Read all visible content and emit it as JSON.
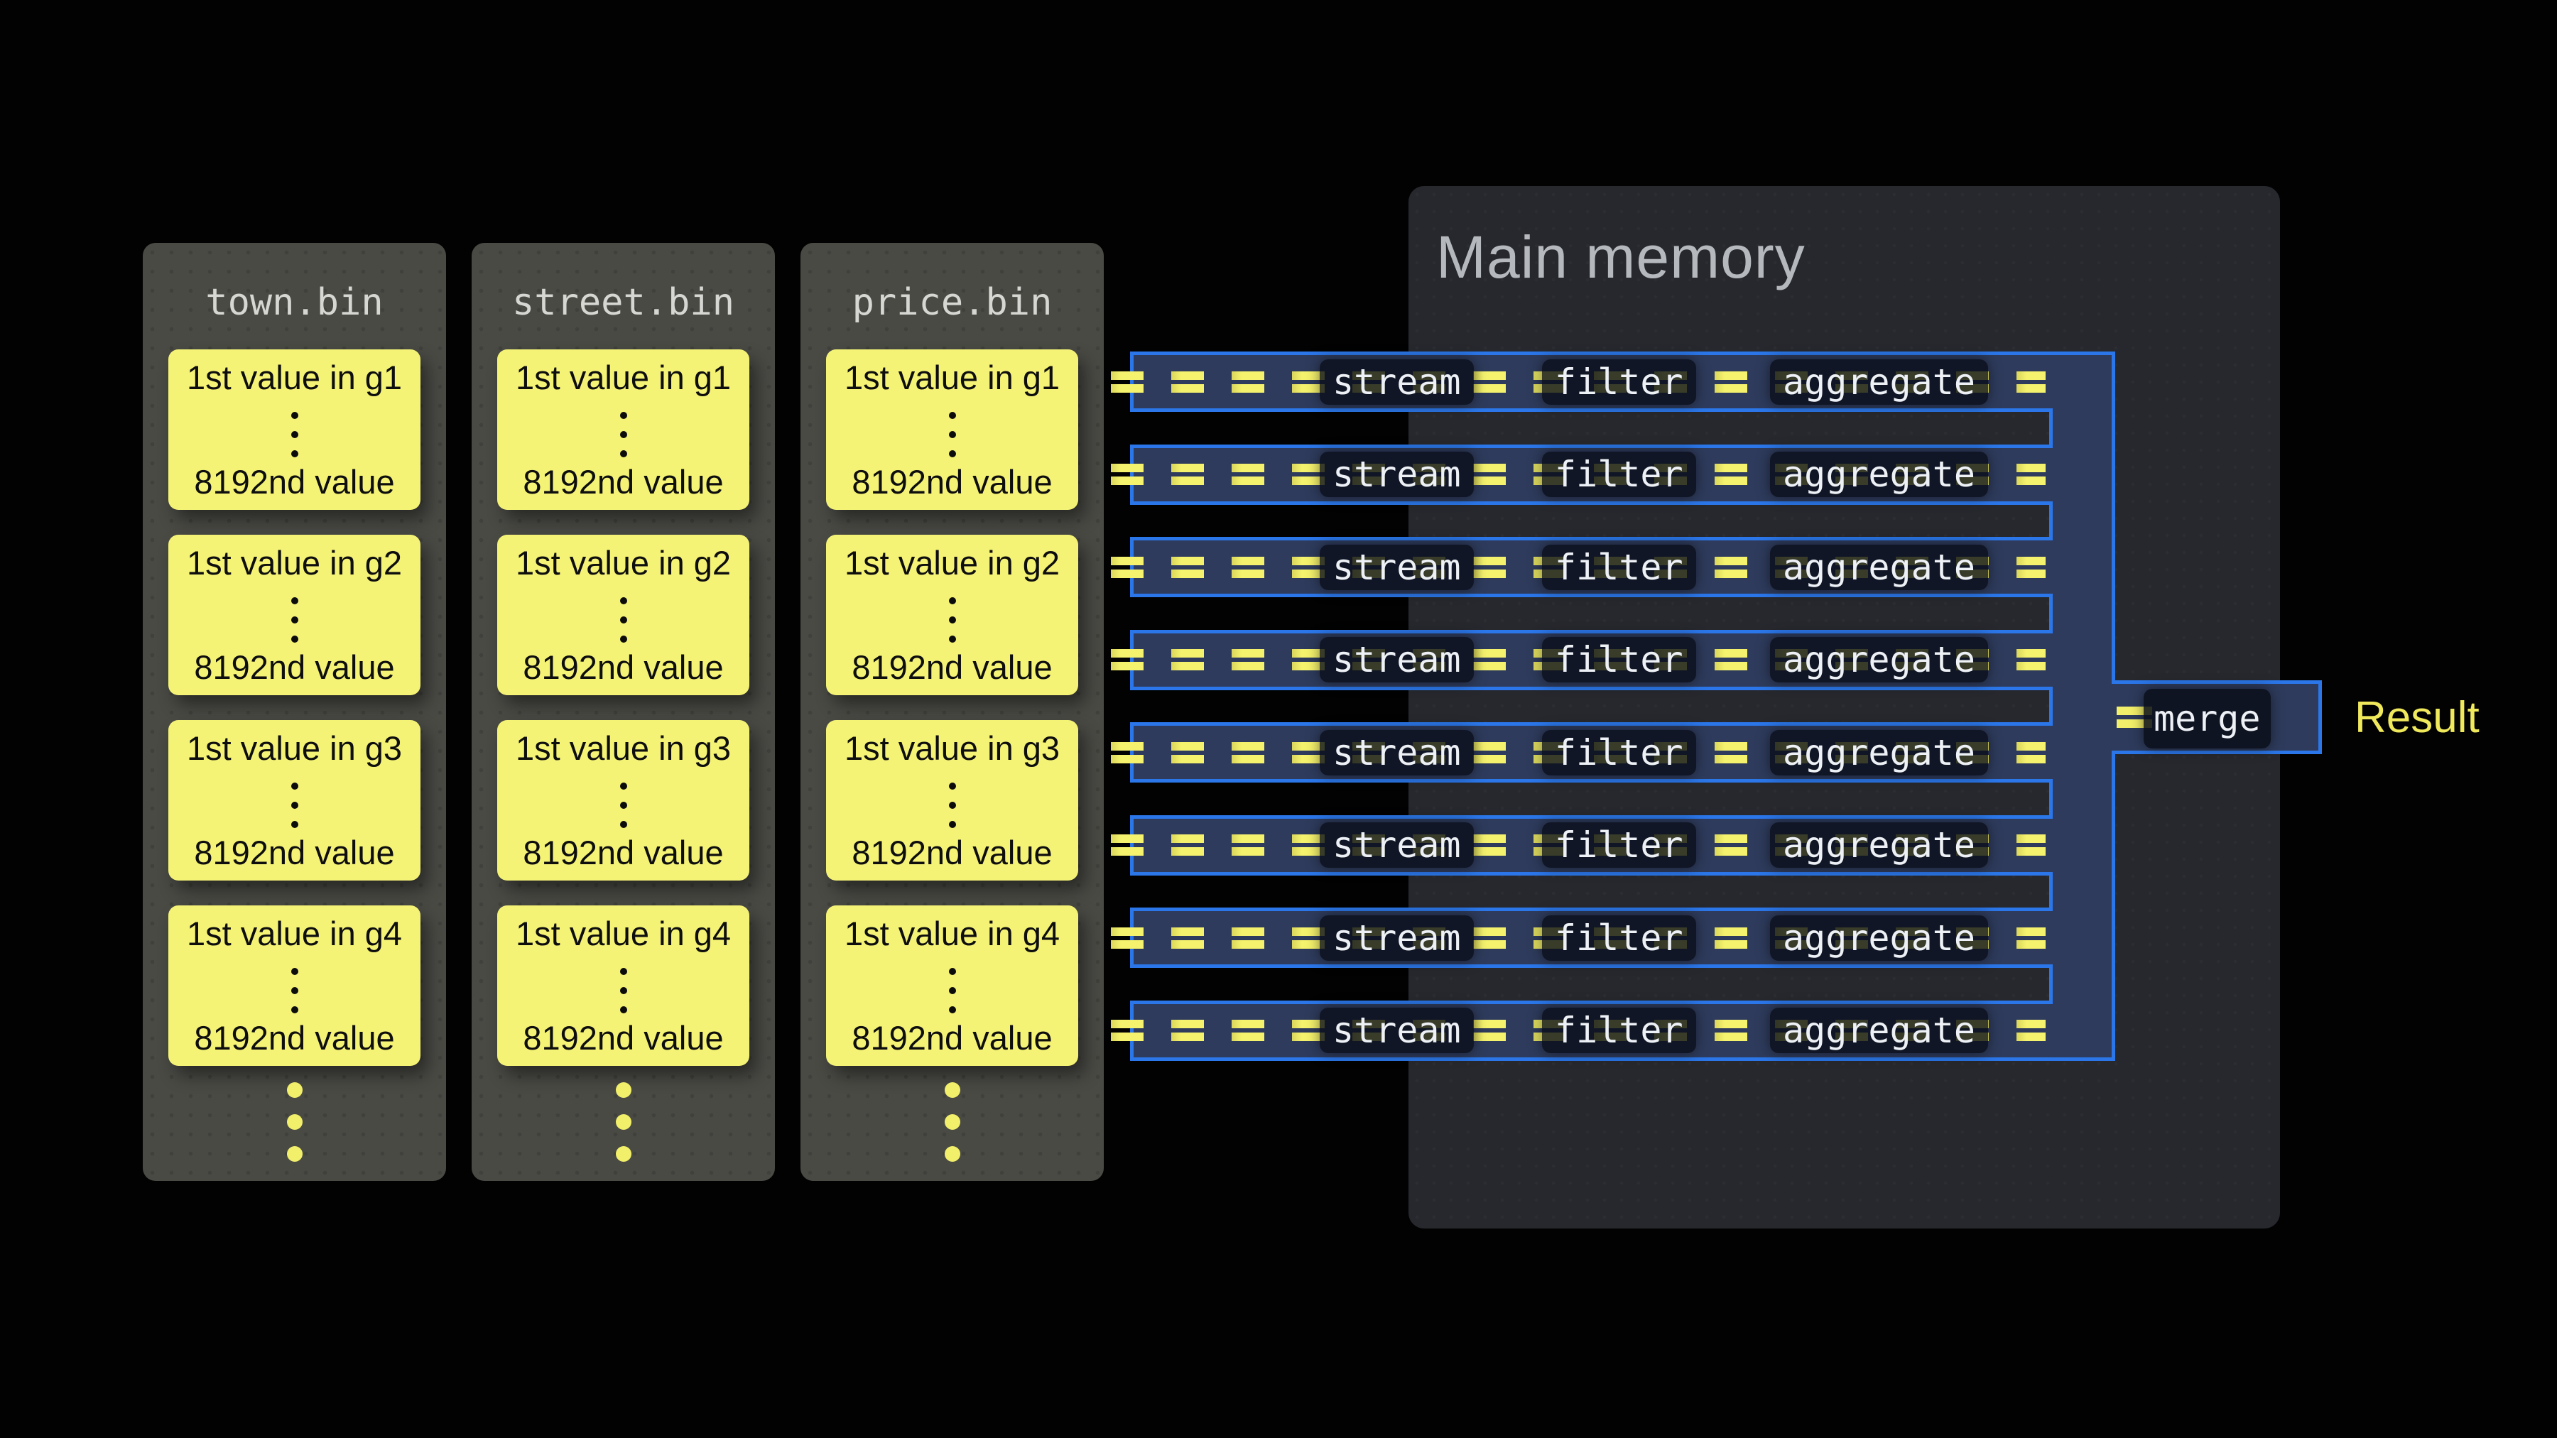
{
  "main_memory": {
    "title": "Main memory"
  },
  "columns": [
    {
      "title": "town.bin",
      "blocks": [
        {
          "first": "1st value in g1",
          "last": "8192nd value"
        },
        {
          "first": "1st value in g2",
          "last": "8192nd value"
        },
        {
          "first": "1st value in g3",
          "last": "8192nd value"
        },
        {
          "first": "1st value in g4",
          "last": "8192nd value"
        }
      ]
    },
    {
      "title": "street.bin",
      "blocks": [
        {
          "first": "1st value in g1",
          "last": "8192nd value"
        },
        {
          "first": "1st value in g2",
          "last": "8192nd value"
        },
        {
          "first": "1st value in g3",
          "last": "8192nd value"
        },
        {
          "first": "1st value in g4",
          "last": "8192nd value"
        }
      ]
    },
    {
      "title": "price.bin",
      "blocks": [
        {
          "first": "1st value in g1",
          "last": "8192nd value"
        },
        {
          "first": "1st value in g2",
          "last": "8192nd value"
        },
        {
          "first": "1st value in g3",
          "last": "8192nd value"
        },
        {
          "first": "1st value in g4",
          "last": "8192nd value"
        }
      ]
    }
  ],
  "pipeline": {
    "rows": [
      {
        "stages": [
          "stream",
          "filter",
          "aggregate"
        ]
      },
      {
        "stages": [
          "stream",
          "filter",
          "aggregate"
        ]
      },
      {
        "stages": [
          "stream",
          "filter",
          "aggregate"
        ]
      },
      {
        "stages": [
          "stream",
          "filter",
          "aggregate"
        ]
      },
      {
        "stages": [
          "stream",
          "filter",
          "aggregate"
        ]
      },
      {
        "stages": [
          "stream",
          "filter",
          "aggregate"
        ]
      },
      {
        "stages": [
          "stream",
          "filter",
          "aggregate"
        ]
      },
      {
        "stages": [
          "stream",
          "filter",
          "aggregate"
        ]
      }
    ],
    "merge_label": "merge",
    "result_label": "Result"
  },
  "colors": {
    "background": "#020202",
    "accent_blue": "#2b76e8",
    "pipeline_fill": "#2e3b5c",
    "dash_yellow": "#f2ef6a",
    "block_yellow": "#f5f376",
    "result_yellow": "#f0e95c",
    "memory_panel": "#26282d",
    "file_column": "#4a4a45"
  }
}
